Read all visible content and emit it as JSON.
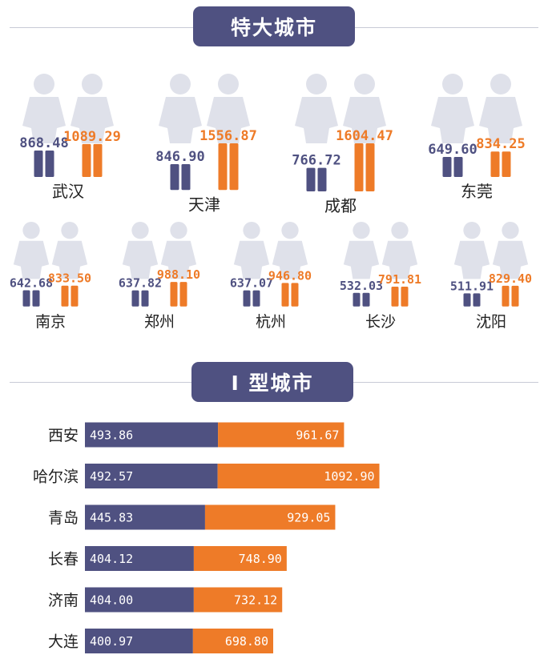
{
  "headers": {
    "section1_title": "特大城市",
    "section2_title": "I 型城市"
  },
  "colors": {
    "navy": "#4f5181",
    "orange": "#ee7b28",
    "figure_light": "#dfe1ea"
  },
  "chart_data": [
    {
      "type": "pictograph",
      "title": "特大城市",
      "series": [
        {
          "color": "navy",
          "values": [
            868.48,
            846.9,
            766.72,
            649.6,
            642.68,
            637.82,
            637.07,
            532.03,
            511.91
          ]
        },
        {
          "color": "orange",
          "values": [
            1089.29,
            1556.87,
            1604.47,
            834.25,
            833.5,
            988.1,
            946.8,
            791.81,
            829.4
          ]
        }
      ],
      "categories": [
        "武汉",
        "天津",
        "成都",
        "东莞",
        "南京",
        "郑州",
        "杭州",
        "长沙",
        "沈阳"
      ],
      "labels": {
        "navy": [
          "868.48",
          "846.90",
          "766.72",
          "649.60",
          "642.68",
          "637.82",
          "637.07",
          "532.03",
          "511.91"
        ],
        "orange": [
          "1089.29",
          "1556.87",
          "1604.47",
          "834.25",
          "833.50",
          "988.10",
          "946.80",
          "791.81",
          "829.40"
        ]
      }
    },
    {
      "type": "bar",
      "orientation": "horizontal",
      "stacked": true,
      "title": "I 型城市",
      "categories": [
        "西安",
        "哈尔滨",
        "青岛",
        "长春",
        "济南",
        "大连"
      ],
      "series": [
        {
          "color": "navy",
          "values": [
            493.86,
            492.57,
            445.83,
            404.12,
            404.0,
            400.97
          ]
        },
        {
          "color": "orange",
          "values": [
            961.67,
            1092.9,
            929.05,
            748.9,
            732.12,
            698.8
          ]
        }
      ],
      "labels": {
        "navy": [
          "493.86",
          "492.57",
          "445.83",
          "404.12",
          "404.00",
          "400.97"
        ],
        "orange": [
          "961.67",
          "1092.90",
          "929.05",
          "748.90",
          "732.12",
          "698.80"
        ]
      }
    }
  ]
}
